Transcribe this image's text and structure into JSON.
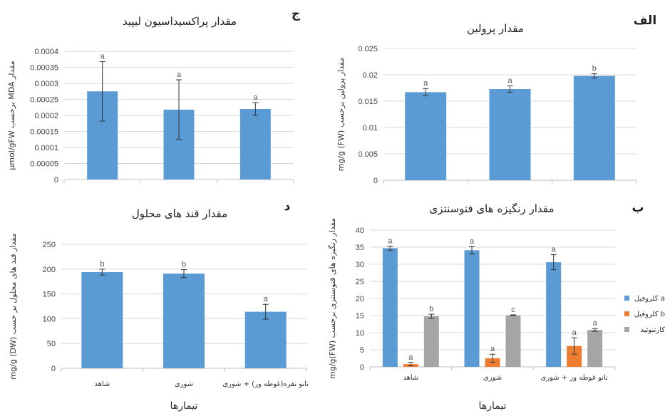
{
  "chart_data": [
    {
      "id": "proline",
      "type": "bar",
      "letter": "الف",
      "title": "مقدار پرولین",
      "ylabel": "mg/g (FW) مقدار پرولین برحسب",
      "xlabel": "",
      "categories": [
        "",
        "",
        ""
      ],
      "ylim": [
        0,
        0.025
      ],
      "yticks": [
        0,
        0.005,
        0.01,
        0.015,
        0.02,
        0.025
      ],
      "ytick_labels": [
        "0",
        "0.005",
        "0.01",
        "0.015",
        "0.02",
        "0.025"
      ],
      "series": [
        {
          "values": [
            0.0167,
            0.0173,
            0.0198
          ],
          "errors": [
            0.0007,
            0.0006,
            0.0004
          ],
          "labels": [
            "a",
            "a",
            "b"
          ],
          "color": "#5B9BD5"
        }
      ]
    },
    {
      "id": "lipid",
      "type": "bar",
      "letter": "ج",
      "title": "مقدار پراکسیداسیون لیپید",
      "ylabel": "µmol/gFW برحسب MDA مقدار",
      "xlabel": "",
      "categories": [
        "",
        "",
        ""
      ],
      "ylim": [
        0,
        0.0004
      ],
      "yticks": [
        0,
        5e-05,
        0.0001,
        0.00015,
        0.0002,
        0.00025,
        0.0003,
        0.00035,
        0.0004
      ],
      "ytick_labels": [
        "0",
        "0.00005",
        "0.0001",
        "0.00015",
        "0.0002",
        "0.00025",
        "0.0003",
        "0.00035",
        "0.0004"
      ],
      "series": [
        {
          "values": [
            0.000275,
            0.000218,
            0.00022
          ],
          "errors": [
            9.3e-05,
            9.3e-05,
            2e-05
          ],
          "labels": [
            "a",
            "a",
            "a"
          ],
          "color": "#5B9BD5"
        }
      ]
    },
    {
      "id": "pigments",
      "type": "bar",
      "letter": "ب",
      "title": "مقدار رنگیزه های فتوسنتزی",
      "ylabel": "mg/g(FW) مقدار رنگیزه های فتوسنتزی برحسب",
      "xlabel": "تیمارها",
      "categories": [
        "شاهد",
        "شوری",
        "نانو غوطه ور + شوری"
      ],
      "ylim": [
        0,
        40
      ],
      "yticks": [
        0,
        5,
        10,
        15,
        20,
        25,
        30,
        35,
        40
      ],
      "ytick_labels": [
        "0",
        "5",
        "10",
        "15",
        "20",
        "25",
        "30",
        "35",
        "40"
      ],
      "legend_position": "right",
      "series": [
        {
          "name": "کلروفیل a",
          "values": [
            34.7,
            34.1,
            30.6
          ],
          "errors": [
            0.6,
            1.1,
            2.2
          ],
          "labels": [
            "a",
            "a",
            "a"
          ],
          "color": "#5B9BD5"
        },
        {
          "name": "کلروفیل b",
          "values": [
            0.8,
            2.5,
            6.1
          ],
          "errors": [
            0.5,
            1.2,
            2.4
          ],
          "labels": [
            "a",
            "a",
            "a"
          ],
          "color": "#ED7D31"
        },
        {
          "name": "کارتنوئید",
          "values": [
            14.8,
            15.1,
            10.8
          ],
          "errors": [
            0.6,
            0.1,
            0.4
          ],
          "labels": [
            "b",
            "c",
            "a"
          ],
          "color": "#A5A5A5"
        }
      ]
    },
    {
      "id": "sugars",
      "type": "bar",
      "letter": "د",
      "title": "مقدار قند های محلول",
      "ylabel": "mg/g (DW) مقدار قند های محلول بر حسب",
      "xlabel": "تیمارها",
      "categories": [
        "شاهد",
        "شوری",
        "نانو نقره(غوطه ور) + شوری"
      ],
      "ylim": [
        0,
        250
      ],
      "yticks": [
        0,
        50,
        100,
        150,
        200,
        250
      ],
      "ytick_labels": [
        "0",
        "50",
        "100",
        "150",
        "200",
        "250"
      ],
      "series": [
        {
          "values": [
            194,
            191,
            114
          ],
          "errors": [
            6,
            8,
            15
          ],
          "labels": [
            "b",
            "b",
            "a"
          ],
          "color": "#5B9BD5"
        }
      ]
    }
  ]
}
